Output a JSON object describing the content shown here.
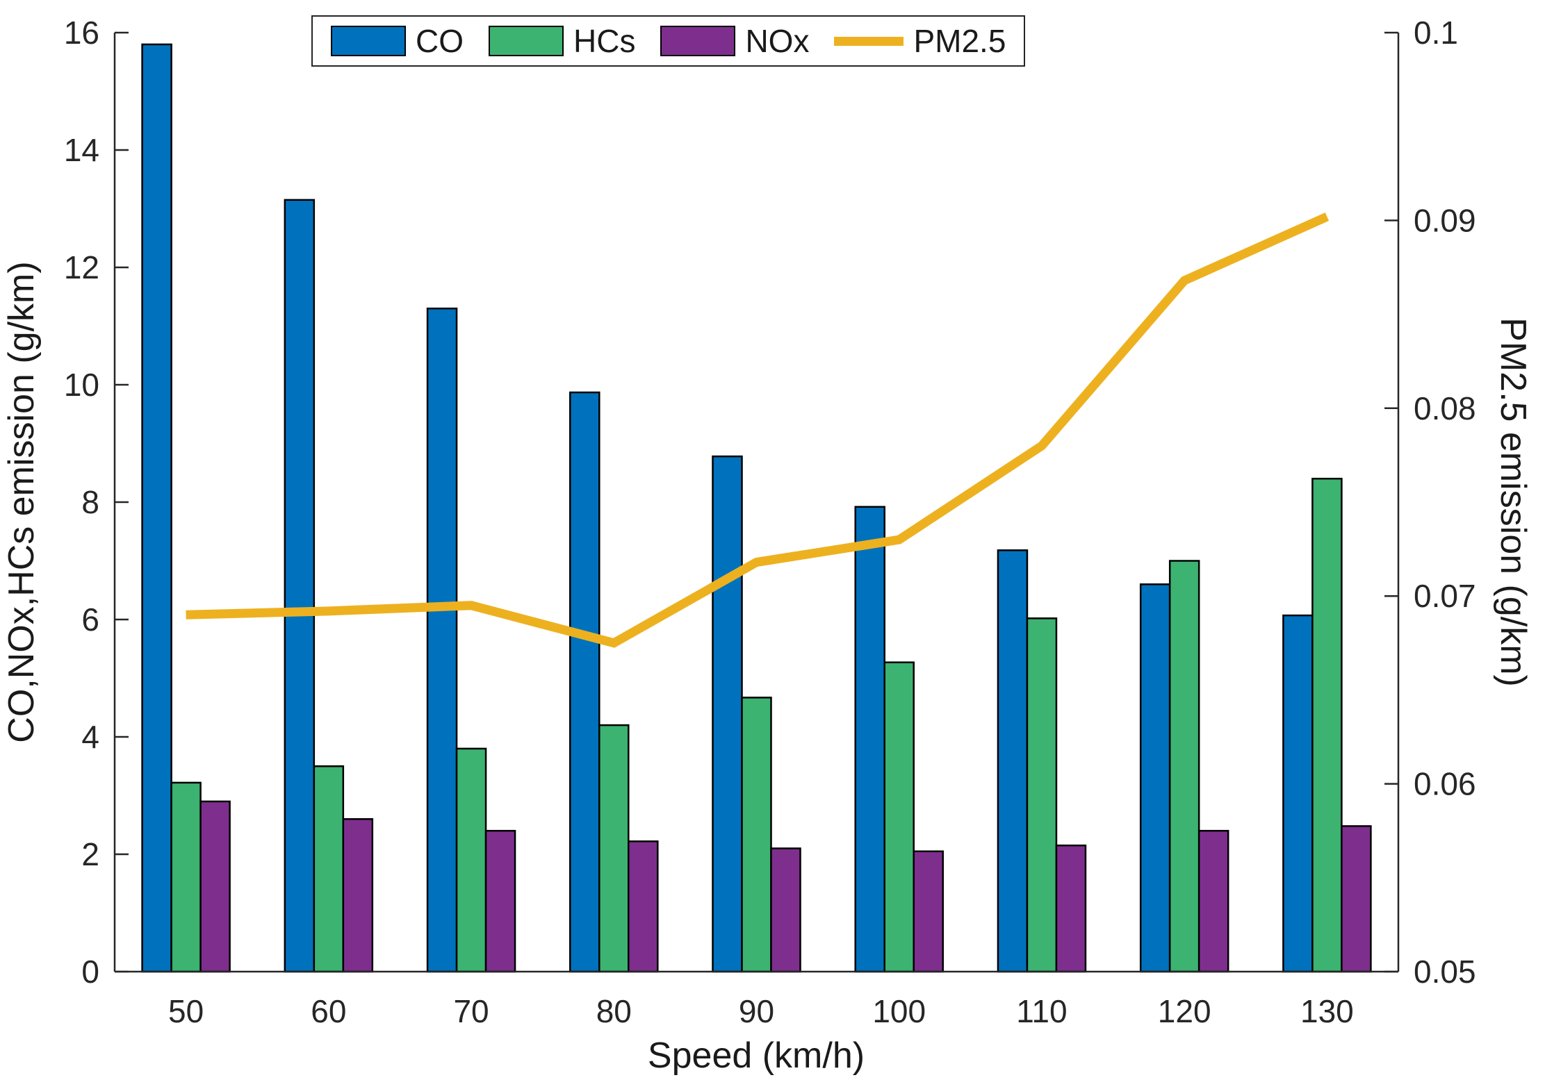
{
  "legend": {
    "position": "top-center",
    "items": [
      "CO",
      "HCs",
      "NOx",
      "PM2.5"
    ]
  },
  "colors": {
    "co_bar": "#0072BD",
    "hcs_bar": "#3CB371",
    "nox_bar": "#7E2F8E",
    "pm25_line": "#EDB120",
    "axis": "#262626"
  },
  "chart_data": {
    "type": "bar",
    "subtype": "grouped bars with overlaid line on secondary axis",
    "categories": [
      50,
      60,
      70,
      80,
      90,
      100,
      110,
      120,
      130
    ],
    "series": [
      {
        "name": "CO",
        "type": "bar",
        "axis": "left",
        "color": "#0072BD",
        "values": [
          15.8,
          13.15,
          11.3,
          9.87,
          8.78,
          7.92,
          7.18,
          6.6,
          6.07
        ]
      },
      {
        "name": "HCs",
        "type": "bar",
        "axis": "left",
        "color": "#3CB371",
        "values": [
          3.22,
          3.5,
          3.8,
          4.2,
          4.67,
          5.27,
          6.02,
          7.0,
          8.4
        ]
      },
      {
        "name": "NOx",
        "type": "bar",
        "axis": "left",
        "color": "#7E2F8E",
        "values": [
          2.9,
          2.6,
          2.4,
          2.22,
          2.1,
          2.05,
          2.15,
          2.4,
          2.48
        ]
      },
      {
        "name": "PM2.5",
        "type": "line",
        "axis": "right",
        "color": "#EDB120",
        "values": [
          0.069,
          0.0692,
          0.0695,
          0.0675,
          0.0718,
          0.073,
          0.078,
          0.0868,
          0.0902
        ]
      }
    ],
    "xlabel": "Speed (km/h)",
    "ylabel_left": "CO,NOx,HCs emission (g/km)",
    "ylabel_right": "PM2.5 emission (g/km)",
    "ylim_left": [
      0,
      16
    ],
    "ytick_step_left": 2,
    "ylim_right": [
      0.05,
      0.1
    ],
    "yticks_right": [
      "0.05",
      "0.06",
      "0.07",
      "0.08",
      "0.09",
      "0.1"
    ],
    "grid": false,
    "legend_position": "top-center"
  }
}
